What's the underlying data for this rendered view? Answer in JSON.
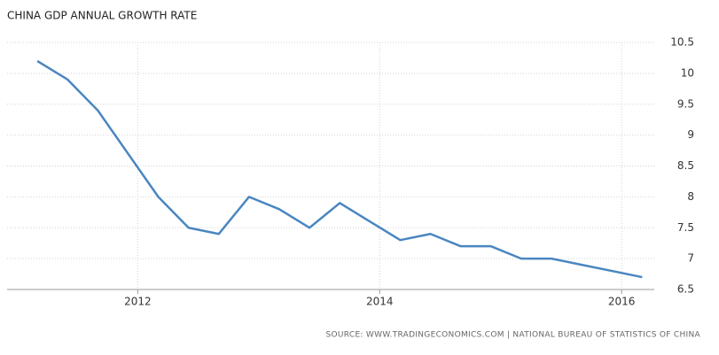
{
  "chart_data": {
    "type": "line",
    "title": "CHINA GDP ANNUAL GROWTH RATE",
    "source": "SOURCE: WWW.TRADINGECONOMICS.COM | NATIONAL BUREAU OF STATISTICS OF CHINA",
    "x": [
      2011.17,
      2011.42,
      2011.67,
      2011.92,
      2012.17,
      2012.42,
      2012.67,
      2012.92,
      2013.17,
      2013.42,
      2013.67,
      2013.92,
      2014.17,
      2014.42,
      2014.67,
      2014.92,
      2015.17,
      2015.42,
      2015.67,
      2015.92,
      2016.17
    ],
    "series": [
      {
        "name": "GDP Annual Growth Rate",
        "color": "#4a86c0",
        "values": [
          10.2,
          9.9,
          9.4,
          8.7,
          8.0,
          7.5,
          7.4,
          8.0,
          7.8,
          7.5,
          7.9,
          7.6,
          7.3,
          7.4,
          7.2,
          7.2,
          7.0,
          7.0,
          6.9,
          6.8,
          6.7
        ]
      }
    ],
    "xlim": [
      2010.92,
      2016.27
    ],
    "xticks": [
      2012,
      2014,
      2016
    ],
    "ylim": [
      6.5,
      10.5
    ],
    "yticks": [
      6.5,
      7,
      7.5,
      8,
      8.5,
      9,
      9.5,
      10,
      10.5
    ],
    "grid": true
  }
}
